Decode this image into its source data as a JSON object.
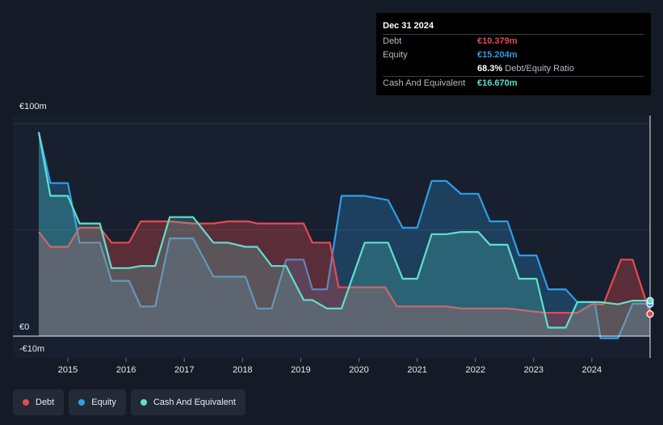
{
  "tooltip": {
    "date": "Dec 31 2024",
    "rows": [
      {
        "label": "Debt",
        "value": "€10.379m",
        "color": "#e64a4f"
      },
      {
        "label": "Equity",
        "value": "€15.204m",
        "color": "#2f9de5"
      },
      {
        "label": "",
        "value": "68.3%",
        "suffix": "Debt/Equity Ratio",
        "color": "#ffffff"
      },
      {
        "label": "Cash And Equivalent",
        "value": "€16.670m",
        "color": "#5fe0cd"
      }
    ]
  },
  "legend": [
    {
      "label": "Debt",
      "color": "#e64a4f"
    },
    {
      "label": "Equity",
      "color": "#2f9de5"
    },
    {
      "label": "Cash And Equivalent",
      "color": "#5fe0cd"
    }
  ],
  "chart_data": {
    "type": "area",
    "title": "",
    "xlabel": "",
    "ylabel": "",
    "ylim": [
      -10,
      100
    ],
    "xlim": [
      2014.5,
      2025.0
    ],
    "y_tick_labels": [
      {
        "value": 100,
        "label": "€100m"
      },
      {
        "value": 0,
        "label": "€0"
      },
      {
        "value": -10,
        "label": "-€10m"
      }
    ],
    "x_ticks": [
      {
        "value": 2015,
        "label": "2015"
      },
      {
        "value": 2016,
        "label": "2016"
      },
      {
        "value": 2017,
        "label": "2017"
      },
      {
        "value": 2018,
        "label": "2018"
      },
      {
        "value": 2019,
        "label": "2019"
      },
      {
        "value": 2020,
        "label": "2020"
      },
      {
        "value": 2021,
        "label": "2021"
      },
      {
        "value": 2022,
        "label": "2022"
      },
      {
        "value": 2023,
        "label": "2023"
      },
      {
        "value": 2024,
        "label": "2024"
      }
    ],
    "series": [
      {
        "name": "Debt",
        "color": "#e64a4f",
        "x": [
          2014.5,
          2014.7,
          2015.0,
          2015.2,
          2015.55,
          2015.75,
          2016.05,
          2016.25,
          2016.75,
          2017.15,
          2017.5,
          2017.75,
          2018.1,
          2018.25,
          2018.75,
          2019.05,
          2019.2,
          2019.5,
          2019.65,
          2019.95,
          2020.45,
          2020.65,
          2020.85,
          2021.5,
          2021.75,
          2022.25,
          2022.55,
          2023.2,
          2023.4,
          2023.75,
          2024.0,
          2024.2,
          2024.5,
          2024.7,
          2025.0
        ],
        "values": [
          49,
          42,
          42,
          51,
          51,
          44,
          44,
          54,
          54,
          53,
          53,
          54,
          54,
          53,
          53,
          53,
          44,
          44,
          23,
          23,
          23,
          14,
          14,
          14,
          13,
          13,
          13,
          11,
          11,
          11,
          15,
          15,
          36,
          36,
          10.4
        ]
      },
      {
        "name": "Equity",
        "color": "#2f9de5",
        "x": [
          2014.5,
          2014.7,
          2015.0,
          2015.2,
          2015.55,
          2015.75,
          2016.05,
          2016.25,
          2016.5,
          2016.75,
          2017.15,
          2017.5,
          2017.75,
          2018.05,
          2018.25,
          2018.5,
          2018.75,
          2019.05,
          2019.2,
          2019.45,
          2019.7,
          2020.1,
          2020.5,
          2020.75,
          2021.0,
          2021.25,
          2021.5,
          2021.75,
          2022.05,
          2022.25,
          2022.55,
          2022.75,
          2023.05,
          2023.25,
          2023.55,
          2023.75,
          2024.05,
          2024.15,
          2024.45,
          2024.7,
          2025.0
        ],
        "values": [
          96,
          72,
          72,
          44,
          44,
          26,
          26,
          14,
          14,
          46,
          46,
          28,
          28,
          28,
          13,
          13,
          36,
          36,
          22,
          22,
          66,
          66,
          64,
          51,
          51,
          73,
          73,
          67,
          67,
          54,
          54,
          38,
          38,
          22,
          22,
          16,
          16,
          -1,
          -1,
          15.2,
          15.2
        ]
      },
      {
        "name": "Cash And Equivalent",
        "color": "#5fe0cd",
        "x": [
          2014.5,
          2014.7,
          2015.0,
          2015.2,
          2015.55,
          2015.75,
          2016.05,
          2016.25,
          2016.5,
          2016.75,
          2017.15,
          2017.5,
          2017.75,
          2018.05,
          2018.25,
          2018.5,
          2018.75,
          2019.05,
          2019.2,
          2019.45,
          2019.7,
          2020.1,
          2020.5,
          2020.75,
          2021.0,
          2021.25,
          2021.5,
          2021.75,
          2022.05,
          2022.25,
          2022.55,
          2022.75,
          2023.05,
          2023.25,
          2023.55,
          2023.75,
          2024.05,
          2024.15,
          2024.45,
          2024.7,
          2025.0
        ],
        "values": [
          96,
          66,
          66,
          53,
          53,
          32,
          32,
          33,
          33,
          56,
          56,
          44,
          44,
          42,
          42,
          33,
          33,
          17,
          17,
          13,
          13,
          44,
          44,
          27,
          27,
          48,
          48,
          49,
          49,
          43,
          43,
          27,
          27,
          4,
          4,
          16,
          16,
          16,
          15,
          16.7,
          16.7
        ]
      }
    ]
  }
}
